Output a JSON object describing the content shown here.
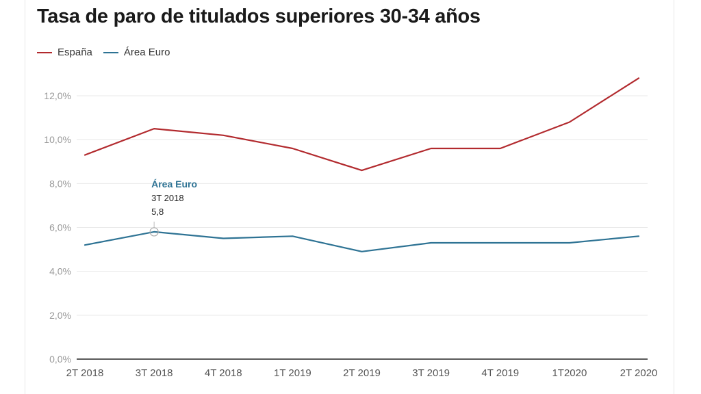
{
  "title": "Tasa de paro de titulados superiores 30-34 años",
  "colors": {
    "espana": "#b22a2e",
    "area_euro": "#2e7394",
    "grid": "#e8e8e8",
    "axis": "#222222"
  },
  "chart_data": {
    "type": "line",
    "title": "Tasa de paro de titulados superiores 30-34 años",
    "categories": [
      "2T 2018",
      "3T 2018",
      "4T 2018",
      "1T 2019",
      "2T 2019",
      "3T 2019",
      "4T 2019",
      "1T2020",
      "2T 2020"
    ],
    "series": [
      {
        "name": "España",
        "color": "#b22a2e",
        "values": [
          9.3,
          10.5,
          10.2,
          9.6,
          8.6,
          9.6,
          9.6,
          10.8,
          12.8
        ]
      },
      {
        "name": "Área Euro",
        "color": "#2e7394",
        "values": [
          5.2,
          5.8,
          5.5,
          5.6,
          4.9,
          5.3,
          5.3,
          5.3,
          5.6
        ]
      }
    ],
    "y_ticks": [
      "0,0%",
      "2,0%",
      "4,0%",
      "6,0%",
      "8,0%",
      "10,0%",
      "12,0%"
    ],
    "y_tick_values": [
      0,
      2,
      4,
      6,
      8,
      10,
      12
    ],
    "ylim": [
      0,
      13.5
    ],
    "grid": true,
    "legend_position": "top-left",
    "annotation": {
      "series": "Área Euro",
      "category": "3T 2018",
      "value_label": "5,8"
    }
  }
}
